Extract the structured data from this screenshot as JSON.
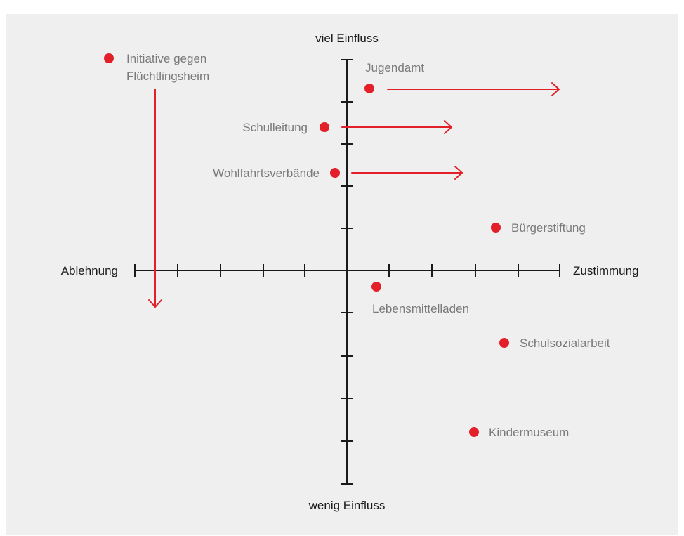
{
  "axes": {
    "top": "viel Einfluss",
    "bottom": "wenig Einfluss",
    "left": "Ablehnung",
    "right": "Zustimmung"
  },
  "stakeholders": [
    {
      "id": "initiative",
      "lines": [
        "Initiative gegen",
        "Flüchtlingsheim"
      ]
    },
    {
      "id": "jugendamt",
      "lines": [
        "Jugendamt"
      ]
    },
    {
      "id": "schulleitung",
      "lines": [
        "Schulleitung"
      ]
    },
    {
      "id": "wohlfahrt",
      "lines": [
        "Wohlfahrtsverbände"
      ]
    },
    {
      "id": "buergerstiftung",
      "lines": [
        "Bürgerstiftung"
      ]
    },
    {
      "id": "lebensmittel",
      "lines": [
        "Lebensmittelladen"
      ]
    },
    {
      "id": "schulsozial",
      "lines": [
        "Schulsozialarbeit"
      ]
    },
    {
      "id": "kindermuseum",
      "lines": [
        "Kindermuseum"
      ]
    }
  ],
  "colors": {
    "accent": "#e3202a",
    "axis": "#1a1a1a",
    "label": "#7a7a7a",
    "panel": "#efefef"
  }
}
